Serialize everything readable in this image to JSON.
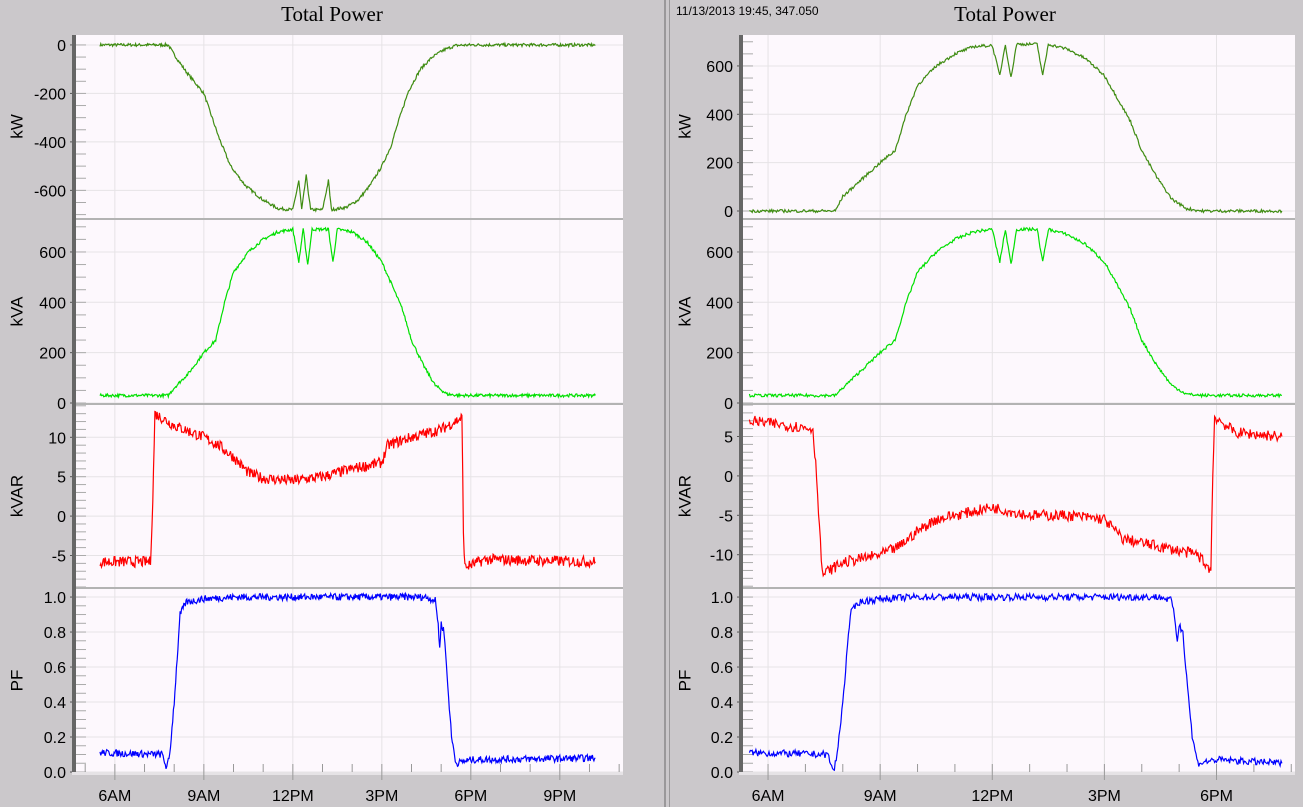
{
  "colors": {
    "background": "#cbc8cb",
    "plot_background": "#fdf8fd",
    "kW": "#3f8c12",
    "kVA": "#00e000",
    "kVAR": "#ff0000",
    "PF": "#0000ff",
    "separator": "#b3b3b3",
    "axis": "#666666"
  },
  "chart_data": [
    {
      "type": "line",
      "title": "Total Power",
      "readout": "",
      "x_ticks": [
        "6AM",
        "9AM",
        "12PM",
        "3PM",
        "6PM",
        "9PM"
      ],
      "x_tick_hours": [
        6,
        9,
        12,
        15,
        18,
        21
      ],
      "xlim_hours": [
        4.69,
        23.13
      ],
      "grid": true,
      "panels": [
        {
          "ylabel": "kW",
          "color_key": "kW",
          "ylim": [
            -714,
            41
          ],
          "y_ticks": [
            0,
            -200,
            -400,
            -600
          ],
          "minor_step": 50,
          "points": [
            [
              5.5,
              0
            ],
            [
              7.8,
              0
            ],
            [
              8.0,
              -40
            ],
            [
              8.4,
              -110
            ],
            [
              9.0,
              -200
            ],
            [
              9.5,
              -380
            ],
            [
              9.9,
              -500
            ],
            [
              10.4,
              -580
            ],
            [
              11.0,
              -640
            ],
            [
              11.5,
              -675
            ],
            [
              12.0,
              -680
            ],
            [
              12.2,
              -560
            ],
            [
              12.3,
              -680
            ],
            [
              12.45,
              -540
            ],
            [
              12.6,
              -680
            ],
            [
              13.0,
              -680
            ],
            [
              13.2,
              -560
            ],
            [
              13.3,
              -680
            ],
            [
              13.8,
              -670
            ],
            [
              14.2,
              -640
            ],
            [
              14.6,
              -580
            ],
            [
              15.0,
              -500
            ],
            [
              15.3,
              -420
            ],
            [
              15.6,
              -300
            ],
            [
              15.9,
              -190
            ],
            [
              16.3,
              -100
            ],
            [
              16.7,
              -50
            ],
            [
              17.1,
              -20
            ],
            [
              17.5,
              -2
            ],
            [
              18.0,
              0
            ],
            [
              22.2,
              0
            ]
          ],
          "noise": 6
        },
        {
          "ylabel": "kVA",
          "color_key": "kVA",
          "ylim": [
            0,
            727
          ],
          "y_ticks": [
            0,
            200,
            400,
            600
          ],
          "minor_step": 50,
          "points": [
            [
              5.5,
              30
            ],
            [
              7.8,
              30
            ],
            [
              8.0,
              60
            ],
            [
              8.5,
              120
            ],
            [
              9.0,
              200
            ],
            [
              9.4,
              250
            ],
            [
              9.7,
              400
            ],
            [
              10.0,
              520
            ],
            [
              10.5,
              600
            ],
            [
              11.0,
              650
            ],
            [
              11.5,
              680
            ],
            [
              12.0,
              690
            ],
            [
              12.2,
              560
            ],
            [
              12.35,
              690
            ],
            [
              12.5,
              550
            ],
            [
              12.65,
              690
            ],
            [
              13.2,
              690
            ],
            [
              13.35,
              560
            ],
            [
              13.5,
              690
            ],
            [
              14.0,
              680
            ],
            [
              14.5,
              640
            ],
            [
              15.0,
              560
            ],
            [
              15.3,
              480
            ],
            [
              15.7,
              370
            ],
            [
              16.0,
              250
            ],
            [
              16.4,
              150
            ],
            [
              16.8,
              70
            ],
            [
              17.2,
              35
            ],
            [
              17.6,
              30
            ],
            [
              22.2,
              30
            ]
          ],
          "noise": 6
        },
        {
          "ylabel": "kVAR",
          "color_key": "kVAR",
          "ylim": [
            -9.0,
            14.1
          ],
          "y_ticks": [
            10,
            5,
            0,
            -5
          ],
          "minor_step": 1,
          "points": [
            [
              5.5,
              -5.8
            ],
            [
              7.2,
              -5.8
            ],
            [
              7.28,
              2
            ],
            [
              7.35,
              13
            ],
            [
              8.0,
              11.5
            ],
            [
              9.0,
              10
            ],
            [
              9.5,
              9
            ],
            [
              10.0,
              7.5
            ],
            [
              10.5,
              5.5
            ],
            [
              11.0,
              4.8
            ],
            [
              12.0,
              4.5
            ],
            [
              13.0,
              5
            ],
            [
              14.0,
              6
            ],
            [
              15.0,
              6.8
            ],
            [
              15.2,
              9
            ],
            [
              16.0,
              10
            ],
            [
              17.0,
              11
            ],
            [
              17.7,
              12.5
            ],
            [
              17.75,
              -2
            ],
            [
              17.8,
              -6.5
            ],
            [
              18.5,
              -5.5
            ],
            [
              22.2,
              -5.8
            ]
          ],
          "noise": 0.7
        },
        {
          "ylabel": "PF",
          "color_key": "PF",
          "ylim": [
            0,
            1.046
          ],
          "y_ticks": [
            1.0,
            0.8,
            0.6,
            0.4,
            0.2,
            0.0
          ],
          "minor_step": 0.05,
          "points": [
            [
              5.5,
              0.11
            ],
            [
              7.6,
              0.1
            ],
            [
              7.75,
              0.02
            ],
            [
              7.85,
              0.1
            ],
            [
              8.0,
              0.4
            ],
            [
              8.2,
              0.9
            ],
            [
              8.4,
              0.97
            ],
            [
              9.0,
              0.99
            ],
            [
              10.0,
              1.0
            ],
            [
              16.5,
              1.0
            ],
            [
              16.8,
              0.98
            ],
            [
              16.9,
              0.85
            ],
            [
              16.95,
              0.7
            ],
            [
              17.0,
              0.85
            ],
            [
              17.1,
              0.8
            ],
            [
              17.2,
              0.55
            ],
            [
              17.35,
              0.2
            ],
            [
              17.5,
              0.05
            ],
            [
              18.0,
              0.07
            ],
            [
              22.2,
              0.08
            ]
          ],
          "noise": 0.02
        }
      ]
    },
    {
      "type": "line",
      "title": "Total Power",
      "readout": "11/13/2013 19:45, 347.050",
      "x_ticks": [
        "6AM",
        "9AM",
        "12PM",
        "3PM",
        "6PM"
      ],
      "x_tick_hours": [
        6,
        9,
        12,
        15,
        18
      ],
      "xlim_hours": [
        5.33,
        20.1
      ],
      "grid": true,
      "panels": [
        {
          "ylabel": "kW",
          "color_key": "kW",
          "ylim": [
            -29,
            728
          ],
          "y_ticks": [
            600,
            400,
            200,
            0
          ],
          "minor_step": 50,
          "points": [
            [
              5.5,
              0
            ],
            [
              7.8,
              0
            ],
            [
              8.0,
              60
            ],
            [
              8.5,
              130
            ],
            [
              9.0,
              200
            ],
            [
              9.4,
              250
            ],
            [
              9.7,
              400
            ],
            [
              10.0,
              520
            ],
            [
              10.5,
              600
            ],
            [
              11.0,
              650
            ],
            [
              11.5,
              680
            ],
            [
              12.0,
              685
            ],
            [
              12.2,
              560
            ],
            [
              12.35,
              690
            ],
            [
              12.5,
              550
            ],
            [
              12.65,
              690
            ],
            [
              13.2,
              690
            ],
            [
              13.35,
              560
            ],
            [
              13.5,
              690
            ],
            [
              14.0,
              670
            ],
            [
              14.5,
              630
            ],
            [
              15.0,
              560
            ],
            [
              15.3,
              480
            ],
            [
              15.7,
              370
            ],
            [
              16.0,
              250
            ],
            [
              16.4,
              140
            ],
            [
              16.8,
              50
            ],
            [
              17.2,
              10
            ],
            [
              17.6,
              0
            ],
            [
              19.75,
              0
            ]
          ],
          "noise": 6
        },
        {
          "ylabel": "kVA",
          "color_key": "kVA",
          "ylim": [
            0,
            727
          ],
          "y_ticks": [
            600,
            400,
            200,
            0
          ],
          "minor_step": 50,
          "points": [
            [
              5.5,
              30
            ],
            [
              7.8,
              30
            ],
            [
              8.0,
              60
            ],
            [
              8.5,
              130
            ],
            [
              9.0,
              200
            ],
            [
              9.4,
              250
            ],
            [
              9.7,
              400
            ],
            [
              10.0,
              520
            ],
            [
              10.5,
              600
            ],
            [
              11.0,
              650
            ],
            [
              11.5,
              680
            ],
            [
              12.0,
              690
            ],
            [
              12.2,
              560
            ],
            [
              12.35,
              690
            ],
            [
              12.5,
              550
            ],
            [
              12.65,
              690
            ],
            [
              13.2,
              690
            ],
            [
              13.35,
              560
            ],
            [
              13.5,
              690
            ],
            [
              14.0,
              670
            ],
            [
              14.5,
              630
            ],
            [
              15.0,
              560
            ],
            [
              15.3,
              480
            ],
            [
              15.7,
              370
            ],
            [
              16.0,
              250
            ],
            [
              16.4,
              150
            ],
            [
              16.8,
              70
            ],
            [
              17.2,
              35
            ],
            [
              17.6,
              30
            ],
            [
              19.75,
              30
            ]
          ],
          "noise": 6
        },
        {
          "ylabel": "kVAR",
          "color_key": "kVAR",
          "ylim": [
            -14.1,
            9.0
          ],
          "y_ticks": [
            5,
            0,
            -5,
            -10
          ],
          "minor_step": 1,
          "points": [
            [
              5.5,
              7
            ],
            [
              7.2,
              6
            ],
            [
              7.3,
              0
            ],
            [
              7.45,
              -12.5
            ],
            [
              8.0,
              -11
            ],
            [
              9.0,
              -10
            ],
            [
              9.5,
              -9
            ],
            [
              10.0,
              -7
            ],
            [
              10.5,
              -5.5
            ],
            [
              11.0,
              -5
            ],
            [
              12.0,
              -4
            ],
            [
              13.0,
              -5
            ],
            [
              14.0,
              -5
            ],
            [
              15.0,
              -5.5
            ],
            [
              15.5,
              -8
            ],
            [
              16.5,
              -9
            ],
            [
              17.5,
              -10
            ],
            [
              17.85,
              -12
            ],
            [
              17.9,
              0
            ],
            [
              17.95,
              7.5
            ],
            [
              18.5,
              5.5
            ],
            [
              19.75,
              5
            ]
          ],
          "noise": 0.7
        },
        {
          "ylabel": "PF",
          "color_key": "PF",
          "ylim": [
            0,
            1.046
          ],
          "y_ticks": [
            1.0,
            0.8,
            0.6,
            0.4,
            0.2,
            0.0
          ],
          "minor_step": 0.05,
          "points": [
            [
              5.5,
              0.11
            ],
            [
              7.6,
              0.1
            ],
            [
              7.75,
              0.0
            ],
            [
              7.85,
              0.1
            ],
            [
              8.0,
              0.4
            ],
            [
              8.2,
              0.9
            ],
            [
              8.4,
              0.97
            ],
            [
              9.0,
              0.99
            ],
            [
              10.0,
              1.0
            ],
            [
              16.5,
              1.0
            ],
            [
              16.8,
              0.98
            ],
            [
              16.9,
              0.85
            ],
            [
              16.95,
              0.75
            ],
            [
              17.0,
              0.84
            ],
            [
              17.1,
              0.8
            ],
            [
              17.2,
              0.55
            ],
            [
              17.35,
              0.2
            ],
            [
              17.5,
              0.05
            ],
            [
              18.0,
              0.07
            ],
            [
              19.75,
              0.05
            ]
          ],
          "noise": 0.02
        }
      ]
    }
  ]
}
